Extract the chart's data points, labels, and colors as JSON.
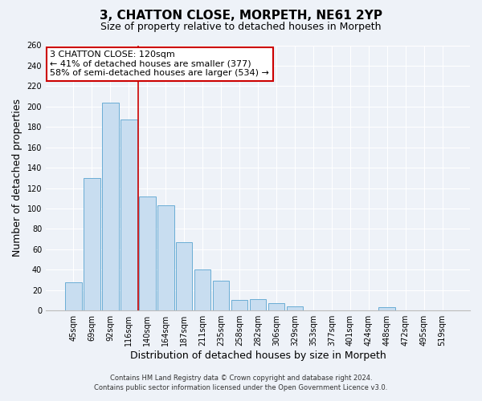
{
  "title": "3, CHATTON CLOSE, MORPETH, NE61 2YP",
  "subtitle": "Size of property relative to detached houses in Morpeth",
  "xlabel": "Distribution of detached houses by size in Morpeth",
  "ylabel": "Number of detached properties",
  "bar_labels": [
    "45sqm",
    "69sqm",
    "92sqm",
    "116sqm",
    "140sqm",
    "164sqm",
    "187sqm",
    "211sqm",
    "235sqm",
    "258sqm",
    "282sqm",
    "306sqm",
    "329sqm",
    "353sqm",
    "377sqm",
    "401sqm",
    "424sqm",
    "448sqm",
    "472sqm",
    "495sqm",
    "519sqm"
  ],
  "bar_values": [
    28,
    130,
    204,
    187,
    112,
    103,
    67,
    40,
    29,
    10,
    11,
    7,
    4,
    0,
    0,
    0,
    0,
    3,
    0,
    0,
    0
  ],
  "bar_color": "#c8ddf0",
  "bar_edge_color": "#6aadd5",
  "vline_color": "#cc0000",
  "annotation_text": "3 CHATTON CLOSE: 120sqm\n← 41% of detached houses are smaller (377)\n58% of semi-detached houses are larger (534) →",
  "annotation_box_color": "#ffffff",
  "annotation_box_edge": "#cc0000",
  "ylim": [
    0,
    260
  ],
  "yticks": [
    0,
    20,
    40,
    60,
    80,
    100,
    120,
    140,
    160,
    180,
    200,
    220,
    240,
    260
  ],
  "footer1": "Contains HM Land Registry data © Crown copyright and database right 2024.",
  "footer2": "Contains public sector information licensed under the Open Government Licence v3.0.",
  "background_color": "#eef2f8",
  "grid_color": "#ffffff",
  "title_fontsize": 11,
  "subtitle_fontsize": 9,
  "tick_fontsize": 7,
  "label_fontsize": 9,
  "footer_fontsize": 6,
  "annotation_fontsize": 8
}
